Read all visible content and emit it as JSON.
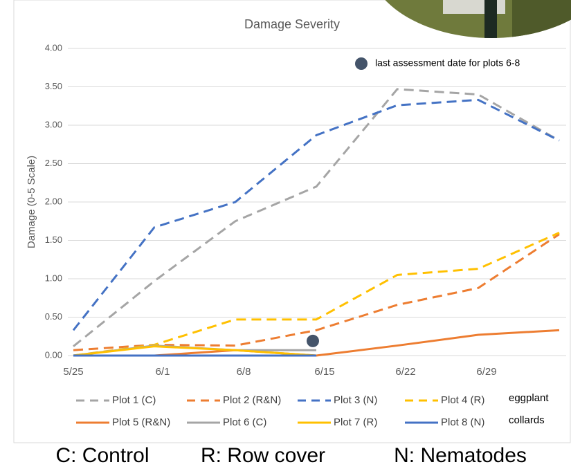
{
  "chart_data": {
    "type": "line",
    "title": "Damage Severity",
    "y_label": "Damage (0-5 Scale)",
    "categories": [
      "5/25",
      "6/1",
      "6/8",
      "6/15",
      "6/22",
      "6/29",
      null
    ],
    "ylim": [
      0,
      4
    ],
    "yticks": [
      {
        "value": 0,
        "label": "0.00"
      },
      {
        "value": 0.5,
        "label": "0.50"
      },
      {
        "value": 1,
        "label": "1.00"
      },
      {
        "value": 1.5,
        "label": "1.50"
      },
      {
        "value": 2,
        "label": "2.00"
      },
      {
        "value": 2.5,
        "label": "2.50"
      },
      {
        "value": 3,
        "label": "3.00"
      },
      {
        "value": 3.5,
        "label": "3.50"
      },
      {
        "value": 4,
        "label": "4.00"
      }
    ],
    "grid": true,
    "series": [
      {
        "name": "Plot 1 (C)",
        "color": "#a5a5a5",
        "dashed": true,
        "values": [
          0.12,
          0.97,
          1.75,
          2.2,
          3.47,
          3.4,
          2.8
        ]
      },
      {
        "name": "Plot 2 (R&N)",
        "color": "#ed7d31",
        "dashed": true,
        "values": [
          0.07,
          0.14,
          0.13,
          0.33,
          0.66,
          0.88,
          1.58
        ]
      },
      {
        "name": "Plot 3 (N)",
        "color": "#4472c4",
        "dashed": true,
        "values": [
          0.33,
          1.67,
          2.0,
          2.87,
          3.26,
          3.33,
          2.8
        ]
      },
      {
        "name": "Plot 4 (R)",
        "color": "#ffc000",
        "dashed": true,
        "values": [
          0.0,
          0.14,
          0.47,
          0.47,
          1.05,
          1.13,
          1.6
        ]
      },
      {
        "name": "Plot 5 (R&N)",
        "color": "#ed7d31",
        "dashed": false,
        "values": [
          0,
          0,
          0.07,
          0,
          0.13,
          0.27,
          0.33
        ]
      },
      {
        "name": "Plot 6 (C)",
        "color": "#a5a5a5",
        "dashed": false,
        "values": [
          0,
          0.13,
          0.07,
          0.07,
          null,
          null,
          null
        ]
      },
      {
        "name": "Plot 7 (R)",
        "color": "#ffc000",
        "dashed": false,
        "values": [
          0,
          0.12,
          0.07,
          0,
          null,
          null,
          null
        ]
      },
      {
        "name": "Plot 8 (N)",
        "color": "#4472c4",
        "dashed": false,
        "values": [
          0,
          0,
          0,
          0,
          null,
          null,
          null
        ]
      }
    ],
    "legend_groups": [
      "eggplant",
      "collards"
    ],
    "annotation": {
      "text": "last assessment date for plots 6-8",
      "category": "6/15",
      "value": 0.19,
      "color": "#44546a"
    },
    "footer": [
      "C: Control",
      "R: Row cover",
      "N: Nematodes"
    ]
  }
}
